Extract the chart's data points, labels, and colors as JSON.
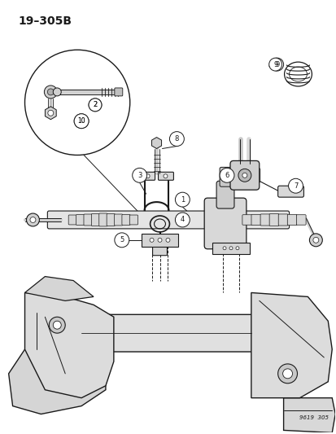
{
  "title": "19–305B",
  "subtitle_code": "9619  305",
  "background_color": "#ffffff",
  "line_color": "#1a1a1a",
  "fig_width": 4.14,
  "fig_height": 5.33,
  "dpi": 100,
  "border_color": "#cccccc",
  "gray_fill": "#e8e8e8",
  "dark_gray": "#aaaaaa",
  "mid_gray": "#cccccc"
}
